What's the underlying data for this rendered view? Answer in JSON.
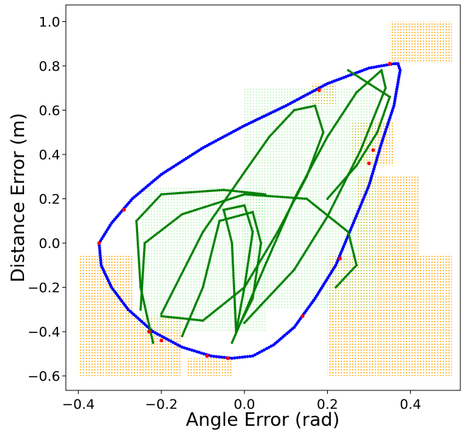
{
  "chart_data": {
    "type": "scatter",
    "title": "",
    "xlabel": "Angle Error (rad)",
    "ylabel": "Distance Error (m)",
    "xlim": [
      -0.43,
      0.52
    ],
    "ylim": [
      -0.665,
      1.075
    ],
    "xticks": [
      -0.4,
      -0.2,
      0.0,
      0.2,
      0.4
    ],
    "xtick_labels": [
      "−0.4",
      "−0.2",
      "0.0",
      "0.2",
      "0.4"
    ],
    "yticks": [
      -0.6,
      -0.4,
      -0.2,
      0.0,
      0.2,
      0.4,
      0.6,
      0.8,
      1.0
    ],
    "ytick_labels": [
      "−0.6",
      "−0.4",
      "−0.2",
      "0.0",
      "0.2",
      "0.4",
      "0.6",
      "0.8",
      "1.0"
    ],
    "grid": false,
    "legend": "none",
    "series": [
      {
        "color": "#ffa500",
        "marker": "dot-grid",
        "regions": [
          {
            "x": [
              0.35,
              0.5
            ],
            "y": [
              0.82,
              1.0
            ]
          },
          {
            "x": [
              -0.4,
              -0.27
            ],
            "y": [
              -0.6,
              -0.05
            ]
          },
          {
            "x": [
              -0.27,
              -0.15
            ],
            "y": [
              -0.6,
              -0.33
            ]
          },
          {
            "x": [
              -0.14,
              -0.03
            ],
            "y": [
              -0.6,
              -0.52
            ]
          },
          {
            "x": [
              0.16,
              0.22
            ],
            "y": [
              0.62,
              0.72
            ]
          },
          {
            "x": [
              0.26,
              0.36
            ],
            "y": [
              0.35,
              0.55
            ]
          },
          {
            "x": [
              0.2,
              0.5
            ],
            "y": [
              -0.6,
              -0.05
            ]
          },
          {
            "x": [
              0.27,
              0.42
            ],
            "y": [
              -0.1,
              0.3
            ]
          }
        ]
      },
      {
        "color": "#0000ff",
        "marker": "dot",
        "points": [
          [
            0.36,
            0.81
          ],
          [
            0.3,
            0.79
          ],
          [
            0.2,
            0.72
          ],
          [
            0.1,
            0.62
          ],
          [
            0.0,
            0.53
          ],
          [
            -0.1,
            0.43
          ],
          [
            -0.2,
            0.31
          ],
          [
            -0.27,
            0.2
          ],
          [
            -0.32,
            0.09
          ],
          [
            -0.35,
            0.0
          ],
          [
            -0.345,
            -0.1
          ],
          [
            -0.32,
            -0.2
          ],
          [
            -0.28,
            -0.3
          ],
          [
            -0.22,
            -0.4
          ],
          [
            -0.15,
            -0.47
          ],
          [
            -0.08,
            -0.51
          ],
          [
            -0.03,
            -0.52
          ],
          [
            0.02,
            -0.51
          ],
          [
            0.07,
            -0.46
          ],
          [
            0.12,
            -0.38
          ],
          [
            0.17,
            -0.25
          ],
          [
            0.22,
            -0.1
          ],
          [
            0.26,
            0.08
          ],
          [
            0.3,
            0.26
          ],
          [
            0.33,
            0.45
          ],
          [
            0.36,
            0.62
          ],
          [
            0.375,
            0.78
          ],
          [
            0.37,
            0.81
          ]
        ]
      },
      {
        "color": "#ff0000",
        "marker": "dot",
        "points": [
          [
            0.18,
            0.69
          ],
          [
            0.35,
            0.81
          ],
          [
            0.31,
            0.42
          ],
          [
            0.3,
            0.36
          ],
          [
            -0.29,
            0.15
          ],
          [
            -0.35,
            0.0
          ],
          [
            -0.23,
            -0.4
          ],
          [
            -0.2,
            -0.44
          ],
          [
            -0.04,
            -0.52
          ],
          [
            -0.09,
            -0.51
          ],
          [
            0.23,
            -0.07
          ],
          [
            0.14,
            -0.33
          ]
        ]
      },
      {
        "color": "#008000",
        "marker": "dot",
        "trajectories": [
          [
            [
              -0.03,
              -0.45
            ],
            [
              0.05,
              -0.1
            ],
            [
              0.12,
              0.2
            ],
            [
              0.2,
              0.48
            ],
            [
              0.27,
              0.68
            ],
            [
              0.33,
              0.78
            ],
            [
              0.34,
              0.7
            ],
            [
              0.28,
              0.42
            ],
            [
              0.2,
              0.12
            ],
            [
              0.12,
              -0.12
            ],
            [
              0.04,
              -0.28
            ],
            [
              0.0,
              -0.36
            ]
          ],
          [
            [
              -0.25,
              -0.3
            ],
            [
              -0.24,
              0.0
            ],
            [
              -0.15,
              0.13
            ],
            [
              0.0,
              0.22
            ],
            [
              0.15,
              0.2
            ],
            [
              0.25,
              0.05
            ],
            [
              0.27,
              -0.1
            ],
            [
              0.22,
              -0.2
            ]
          ],
          [
            [
              -0.2,
              -0.32
            ],
            [
              -0.1,
              0.05
            ],
            [
              0.0,
              0.32
            ],
            [
              0.06,
              0.48
            ],
            [
              0.12,
              0.6
            ],
            [
              0.17,
              0.62
            ],
            [
              0.19,
              0.5
            ],
            [
              0.15,
              0.3
            ],
            [
              0.08,
              0.05
            ],
            [
              0.0,
              -0.2
            ],
            [
              -0.1,
              -0.35
            ],
            [
              -0.2,
              -0.33
            ]
          ],
          [
            [
              -0.02,
              -0.4
            ],
            [
              -0.03,
              0.0
            ],
            [
              -0.05,
              0.15
            ],
            [
              0.0,
              0.17
            ],
            [
              0.02,
              0.05
            ],
            [
              0.0,
              -0.2
            ],
            [
              -0.02,
              -0.4
            ]
          ],
          [
            [
              -0.15,
              -0.42
            ],
            [
              -0.1,
              -0.2
            ],
            [
              -0.06,
              0.1
            ],
            [
              0.02,
              0.14
            ],
            [
              0.04,
              0.0
            ],
            [
              0.02,
              -0.25
            ],
            [
              -0.02,
              -0.4
            ]
          ],
          [
            [
              0.25,
              0.78
            ],
            [
              0.3,
              0.72
            ],
            [
              0.35,
              0.66
            ],
            [
              0.32,
              0.5
            ],
            [
              0.27,
              0.35
            ],
            [
              0.2,
              0.2
            ]
          ],
          [
            [
              -0.22,
              -0.45
            ],
            [
              -0.25,
              -0.2
            ],
            [
              -0.26,
              0.1
            ],
            [
              -0.2,
              0.22
            ],
            [
              -0.05,
              0.24
            ],
            [
              0.05,
              0.22
            ]
          ]
        ]
      },
      {
        "color": "#90ee90",
        "marker": "dot",
        "regions": [
          {
            "x": [
              -0.25,
              0.05
            ],
            "y": [
              -0.4,
              0.25
            ]
          },
          {
            "x": [
              0.0,
              0.32
            ],
            "y": [
              -0.3,
              0.7
            ]
          }
        ]
      }
    ]
  }
}
